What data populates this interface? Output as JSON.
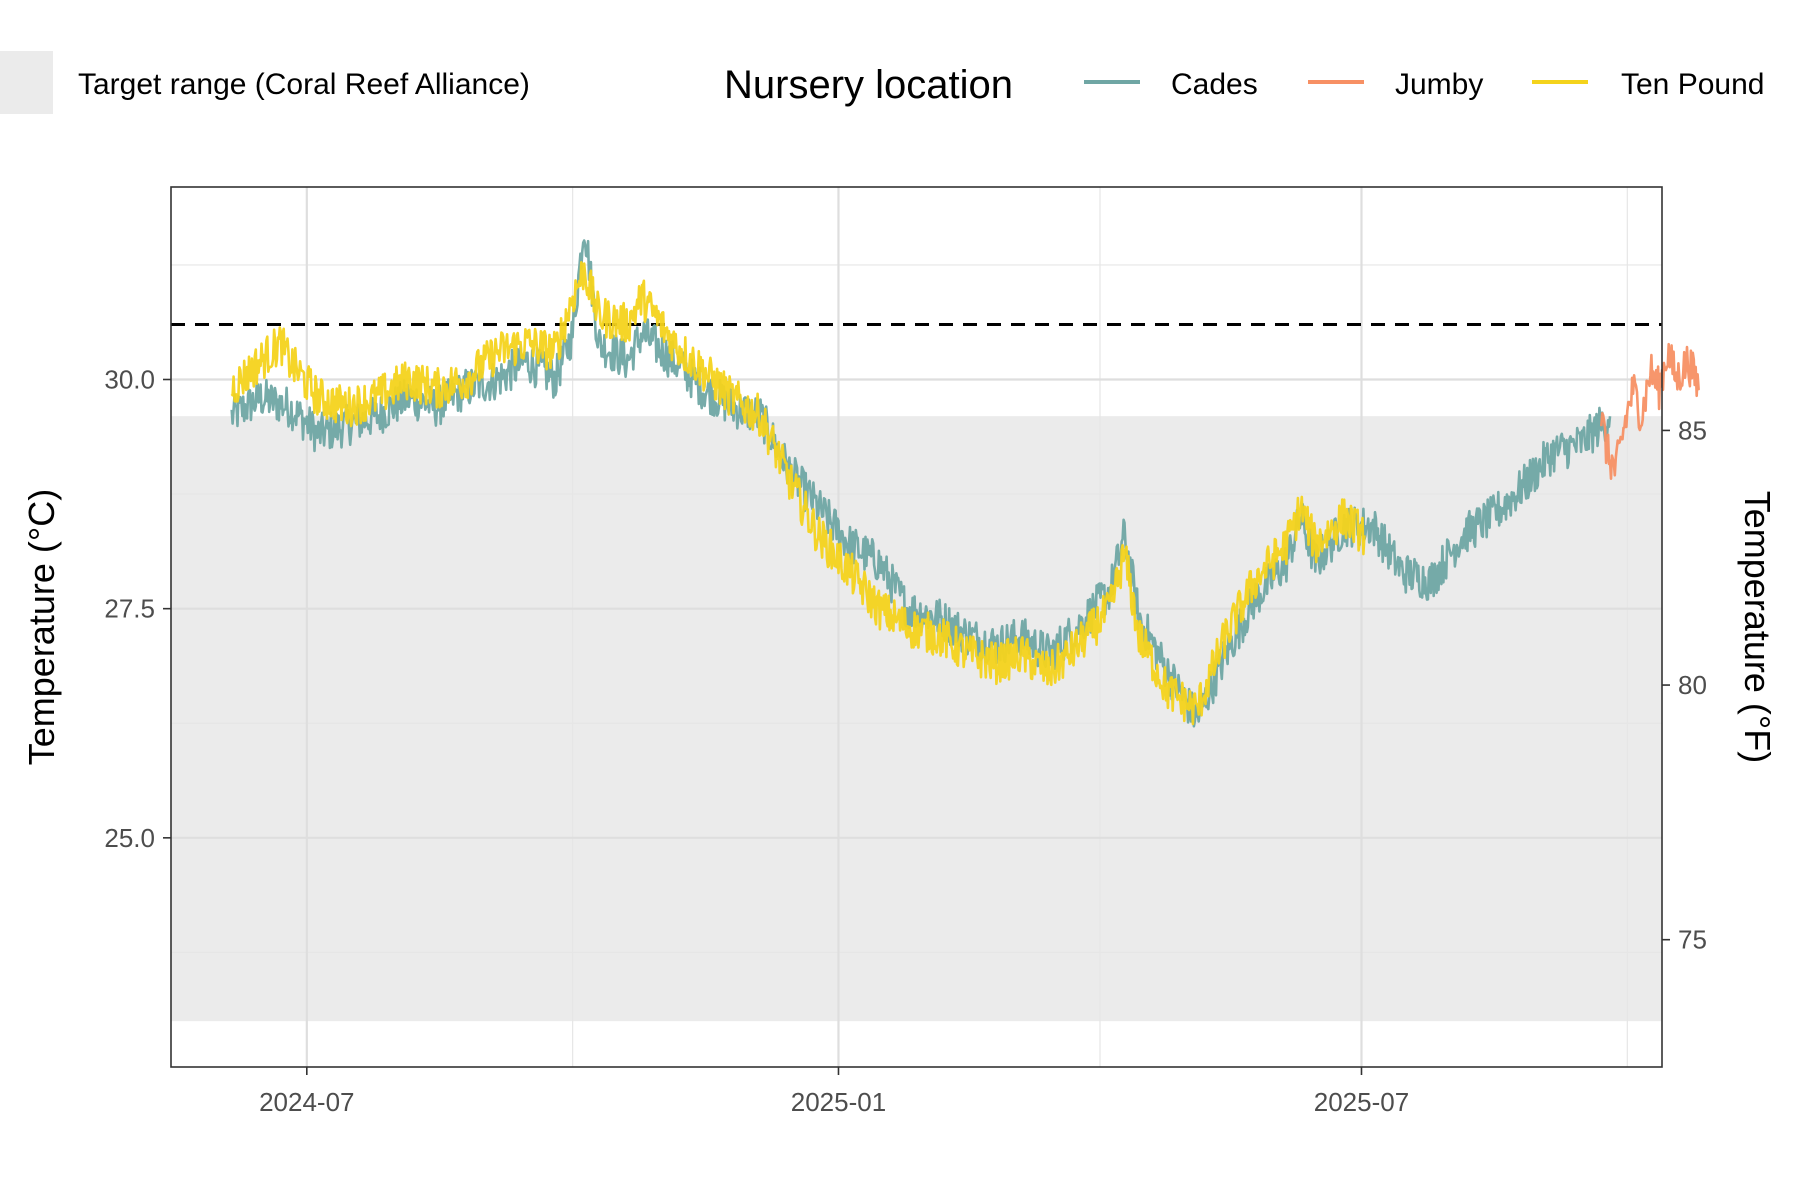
{
  "chart_data": {
    "type": "line",
    "title": "",
    "xlabel": "",
    "ylabel": "Temperature (°C)",
    "ylabel_secondary": "Temperature (°F)",
    "x_tick_labels": [
      "2024-07",
      "2025-01",
      "2025-07"
    ],
    "y_ticks": [
      25.0,
      27.5,
      30.0
    ],
    "y_tick_labels": [
      "25.0",
      "27.5",
      "30.0"
    ],
    "y2_ticks": [
      75,
      80,
      85
    ],
    "y2_tick_labels": [
      "75",
      "80",
      "85"
    ],
    "xlim": [
      "2024-05-15",
      "2025-10-13"
    ],
    "ylim": [
      22.5,
      32.1
    ],
    "grid": true,
    "threshold_line": {
      "value": 30.6,
      "style": "dashed",
      "color": "#000000"
    },
    "target_range": {
      "label": "Target range (Coral Reef Alliance)",
      "ymin": 23.0,
      "ymax": 29.6,
      "color": "#ebebeb"
    },
    "legend": {
      "title": "Nursery location",
      "position": "top"
    },
    "series": [
      {
        "name": "Cades",
        "color": "#6fa6a4",
        "points": [
          [
            "2024-06-05",
            29.6
          ],
          [
            "2024-06-15",
            29.8
          ],
          [
            "2024-06-25",
            29.7
          ],
          [
            "2024-07-05",
            29.4
          ],
          [
            "2024-07-15",
            29.5
          ],
          [
            "2024-07-25",
            29.6
          ],
          [
            "2024-08-05",
            29.8
          ],
          [
            "2024-08-15",
            29.7
          ],
          [
            "2024-08-25",
            29.9
          ],
          [
            "2024-09-05",
            30.0
          ],
          [
            "2024-09-15",
            30.2
          ],
          [
            "2024-09-25",
            30.0
          ],
          [
            "2024-10-01",
            30.5
          ],
          [
            "2024-10-05",
            31.7
          ],
          [
            "2024-10-10",
            30.4
          ],
          [
            "2024-10-20",
            30.2
          ],
          [
            "2024-10-25",
            30.5
          ],
          [
            "2024-11-05",
            30.2
          ],
          [
            "2024-11-15",
            29.9
          ],
          [
            "2024-11-25",
            29.7
          ],
          [
            "2024-12-05",
            29.6
          ],
          [
            "2024-12-15",
            29.0
          ],
          [
            "2024-12-25",
            28.6
          ],
          [
            "2025-01-05",
            28.2
          ],
          [
            "2025-01-15",
            28.0
          ],
          [
            "2025-01-25",
            27.5
          ],
          [
            "2025-02-05",
            27.4
          ],
          [
            "2025-02-15",
            27.2
          ],
          [
            "2025-02-25",
            27.1
          ],
          [
            "2025-03-05",
            27.2
          ],
          [
            "2025-03-15",
            27.0
          ],
          [
            "2025-03-25",
            27.3
          ],
          [
            "2025-04-05",
            27.7
          ],
          [
            "2025-04-10",
            28.3
          ],
          [
            "2025-04-15",
            27.4
          ],
          [
            "2025-04-25",
            26.8
          ],
          [
            "2025-05-05",
            26.3
          ],
          [
            "2025-05-15",
            27.0
          ],
          [
            "2025-05-25",
            27.6
          ],
          [
            "2025-06-05",
            28.0
          ],
          [
            "2025-06-10",
            28.5
          ],
          [
            "2025-06-15",
            28.0
          ],
          [
            "2025-06-25",
            28.4
          ],
          [
            "2025-07-05",
            28.4
          ],
          [
            "2025-07-15",
            27.9
          ],
          [
            "2025-07-25",
            27.8
          ],
          [
            "2025-08-05",
            28.3
          ],
          [
            "2025-08-15",
            28.5
          ],
          [
            "2025-08-25",
            28.8
          ],
          [
            "2025-09-05",
            29.2
          ],
          [
            "2025-09-15",
            29.3
          ],
          [
            "2025-09-25",
            29.6
          ]
        ]
      },
      {
        "name": "Jumby",
        "color": "#f79064",
        "points": [
          [
            "2025-09-22",
            29.6
          ],
          [
            "2025-09-24",
            29.2
          ],
          [
            "2025-09-27",
            29.0
          ],
          [
            "2025-09-30",
            29.5
          ],
          [
            "2025-10-03",
            29.9
          ],
          [
            "2025-10-06",
            29.6
          ],
          [
            "2025-10-09",
            30.1
          ],
          [
            "2025-10-12",
            29.9
          ],
          [
            "2025-10-15",
            30.3
          ],
          [
            "2025-10-18",
            30.0
          ],
          [
            "2025-10-22",
            30.2
          ],
          [
            "2025-10-26",
            29.9
          ]
        ]
      },
      {
        "name": "Ten Pound",
        "color": "#f4d31c",
        "points": [
          [
            "2024-06-05",
            29.9
          ],
          [
            "2024-06-15",
            30.2
          ],
          [
            "2024-06-22",
            30.4
          ],
          [
            "2024-06-25",
            30.2
          ],
          [
            "2024-07-05",
            29.8
          ],
          [
            "2024-07-15",
            29.7
          ],
          [
            "2024-07-25",
            29.8
          ],
          [
            "2024-08-05",
            30.0
          ],
          [
            "2024-08-15",
            29.9
          ],
          [
            "2024-08-25",
            30.0
          ],
          [
            "2024-09-05",
            30.3
          ],
          [
            "2024-09-15",
            30.4
          ],
          [
            "2024-09-25",
            30.3
          ],
          [
            "2024-10-01",
            30.9
          ],
          [
            "2024-10-05",
            31.2
          ],
          [
            "2024-10-10",
            30.7
          ],
          [
            "2024-10-20",
            30.6
          ],
          [
            "2024-10-25",
            30.9
          ],
          [
            "2024-11-05",
            30.4
          ],
          [
            "2024-11-15",
            30.1
          ],
          [
            "2024-11-25",
            29.8
          ],
          [
            "2024-12-05",
            29.6
          ],
          [
            "2024-12-15",
            28.9
          ],
          [
            "2024-12-25",
            28.3
          ],
          [
            "2025-01-05",
            27.9
          ],
          [
            "2025-01-15",
            27.5
          ],
          [
            "2025-01-25",
            27.3
          ],
          [
            "2025-02-05",
            27.2
          ],
          [
            "2025-02-15",
            27.0
          ],
          [
            "2025-02-25",
            26.9
          ],
          [
            "2025-03-05",
            27.0
          ],
          [
            "2025-03-15",
            26.8
          ],
          [
            "2025-03-25",
            27.1
          ],
          [
            "2025-04-05",
            27.5
          ],
          [
            "2025-04-10",
            28.1
          ],
          [
            "2025-04-15",
            27.2
          ],
          [
            "2025-04-25",
            26.6
          ],
          [
            "2025-05-05",
            26.4
          ],
          [
            "2025-05-15",
            27.2
          ],
          [
            "2025-05-25",
            27.8
          ],
          [
            "2025-06-05",
            28.2
          ],
          [
            "2025-06-10",
            28.6
          ],
          [
            "2025-06-15",
            28.2
          ],
          [
            "2025-06-25",
            28.5
          ],
          [
            "2025-07-02",
            28.3
          ]
        ]
      }
    ]
  }
}
